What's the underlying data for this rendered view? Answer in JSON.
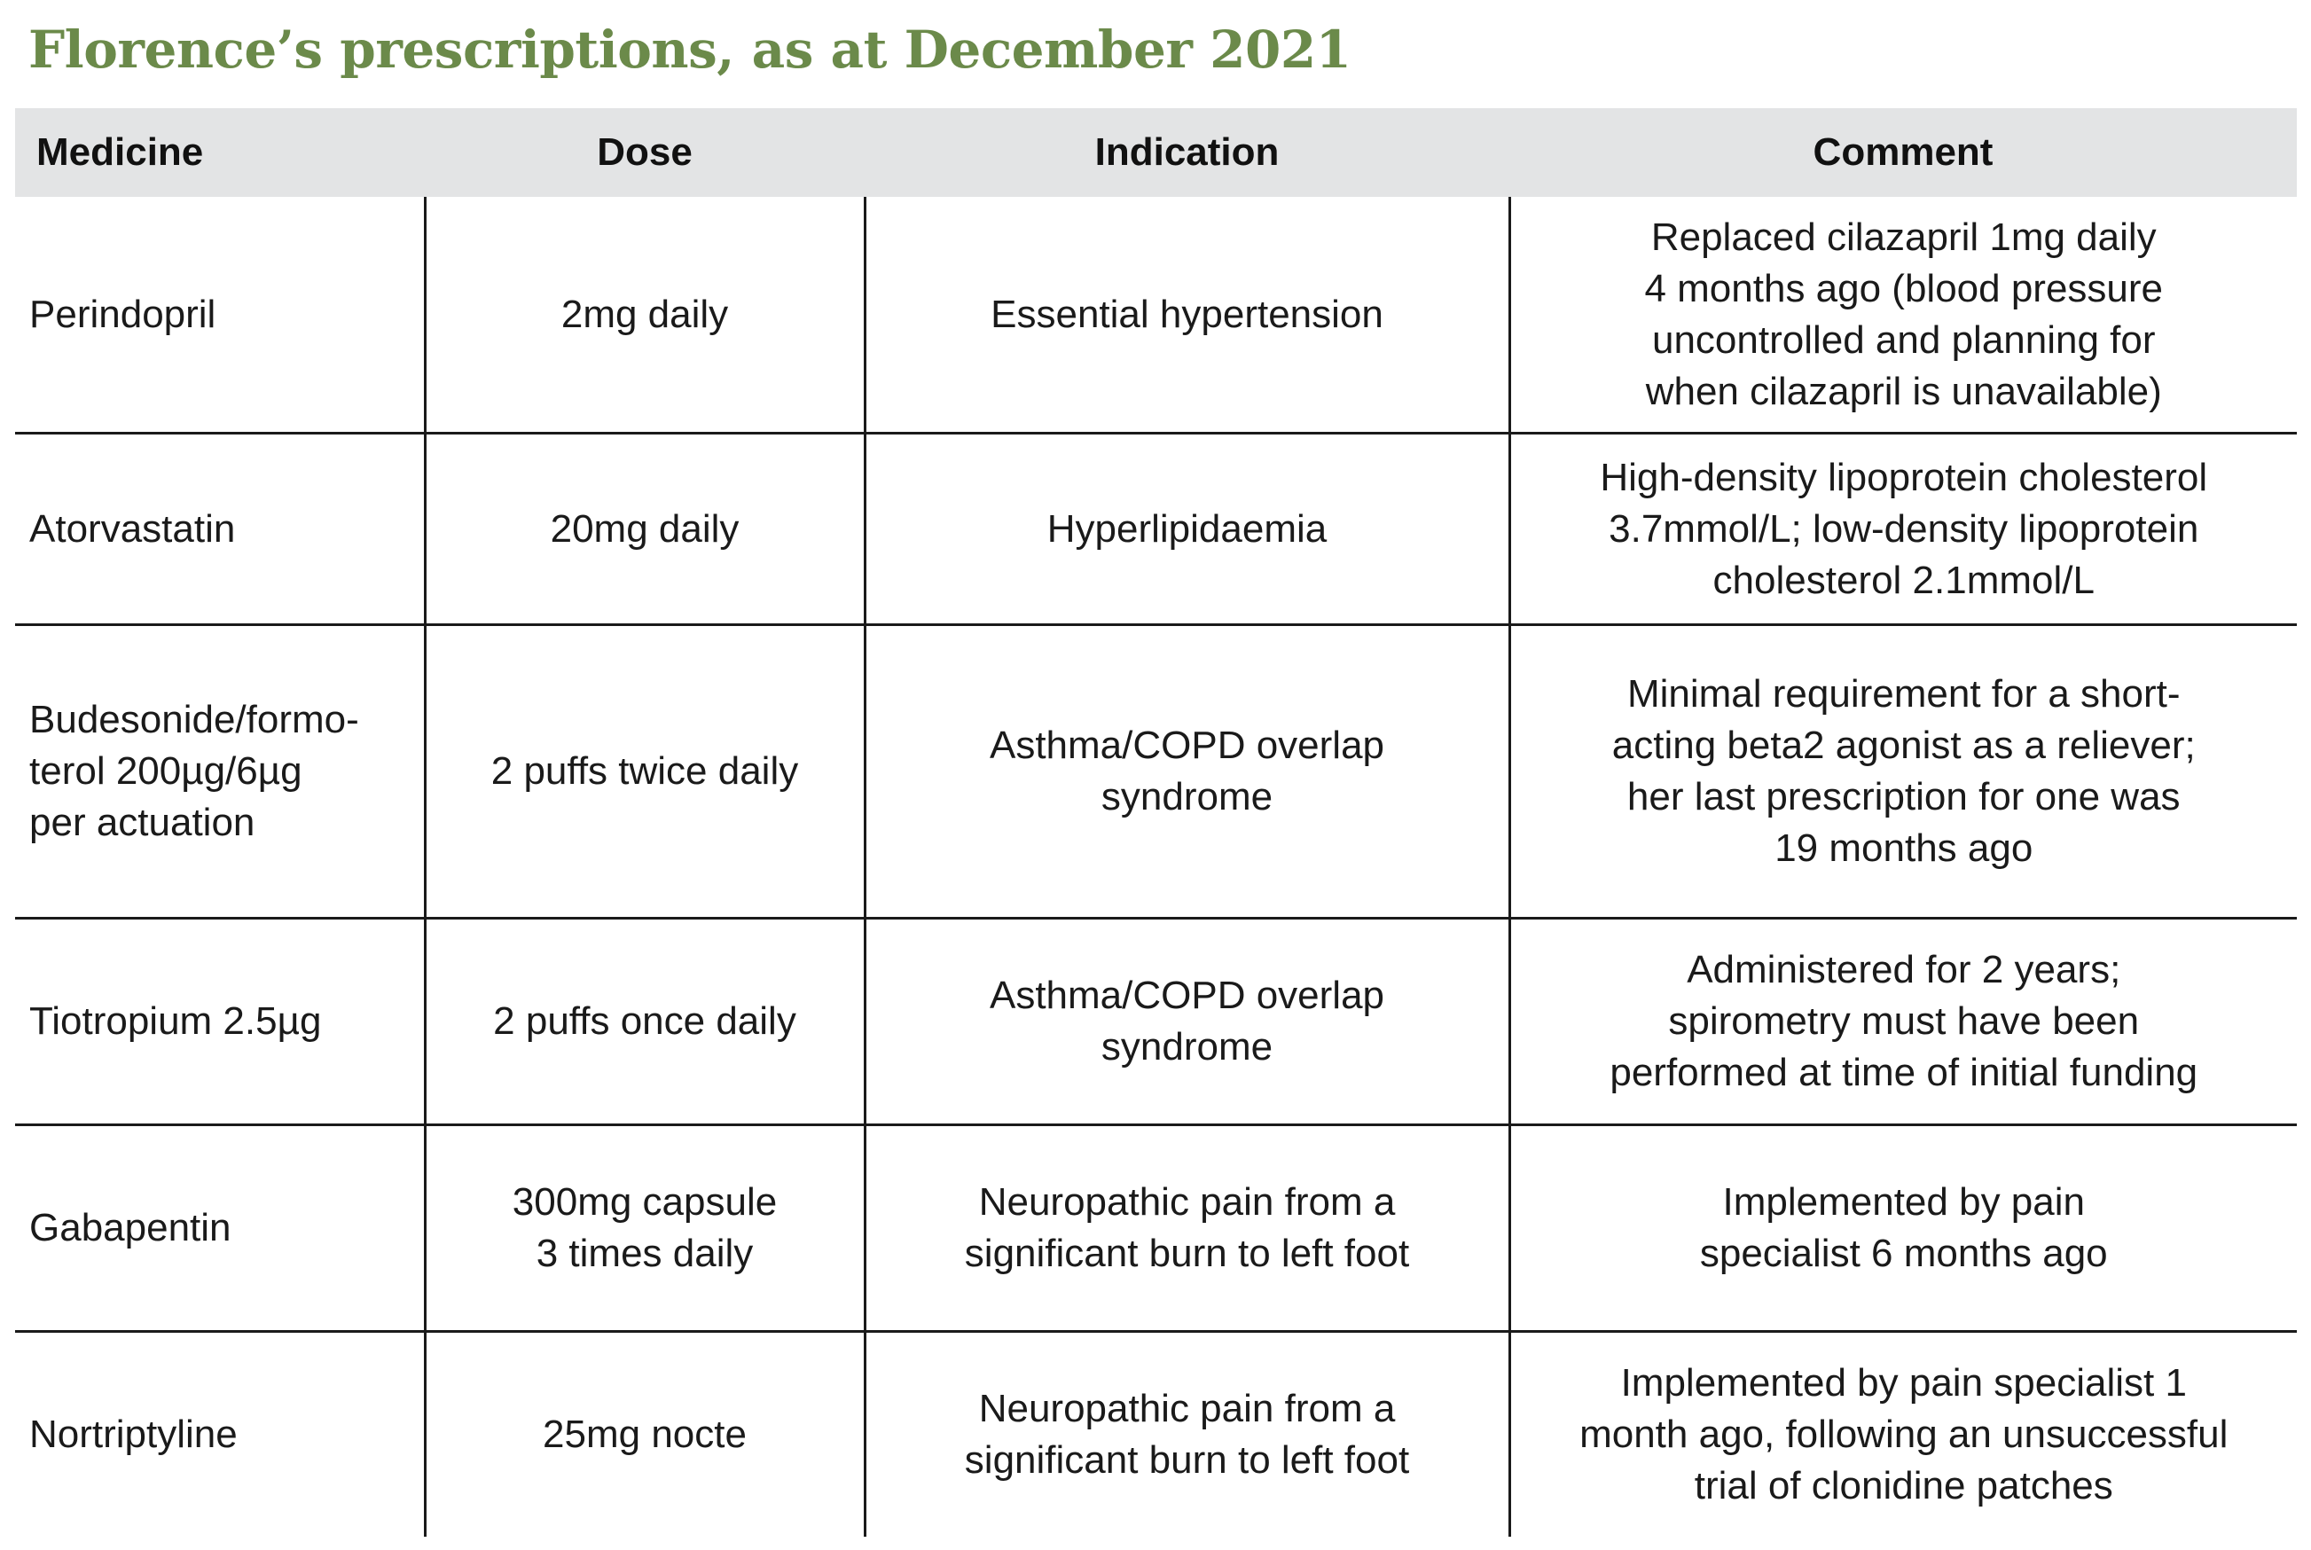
{
  "title": "Florence’s prescriptions, as at December 2021",
  "table": {
    "headers": [
      "Medicine",
      "Dose",
      "Indication",
      "Comment"
    ],
    "rows": [
      {
        "medicine": "Perindopril",
        "dose": "2mg daily",
        "indication": "Essential hypertension",
        "comment": "Replaced cilazapril 1mg daily\n4 months ago (blood pressure\nuncontrolled and planning for\nwhen cilazapril is unavailable)"
      },
      {
        "medicine": "Atorvastatin",
        "dose": "20mg daily",
        "indication": "Hyperlipidaemia",
        "comment": "High-density lipoprotein cholesterol\n3.7mmol/L; low-density lipoprotein\ncholesterol 2.1mmol/L"
      },
      {
        "medicine": "Budesonide/formo-\nterol 200µg/6µg\nper actuation",
        "dose": "2 puffs twice daily",
        "indication": "Asthma/COPD overlap\nsyndrome",
        "comment": "Minimal requirement for a short-\nacting beta2 agonist as a reliever;\nher last prescription for one was\n19 months ago"
      },
      {
        "medicine": "Tiotropium 2.5µg",
        "dose": "2 puffs once daily",
        "indication": "Asthma/COPD overlap\nsyndrome",
        "comment": "Administered for 2 years;\nspirometry must have been\nperformed at time of initial funding"
      },
      {
        "medicine": "Gabapentin",
        "dose": "300mg capsule\n3 times daily",
        "indication": "Neuropathic pain from a\nsignificant burn to left foot",
        "comment": "Implemented by pain\nspecialist 6 months ago"
      },
      {
        "medicine": "Nortriptyline",
        "dose": "25mg nocte",
        "indication": "Neuropathic pain from a\nsignificant burn to left foot",
        "comment": "Implemented by pain specialist 1\nmonth ago, following an unsuccessful\ntrial of clonidine patches"
      }
    ]
  },
  "colors": {
    "title": "#6b8a4a",
    "header_background": "#e3e4e5",
    "rule": "#1a1a1a"
  }
}
